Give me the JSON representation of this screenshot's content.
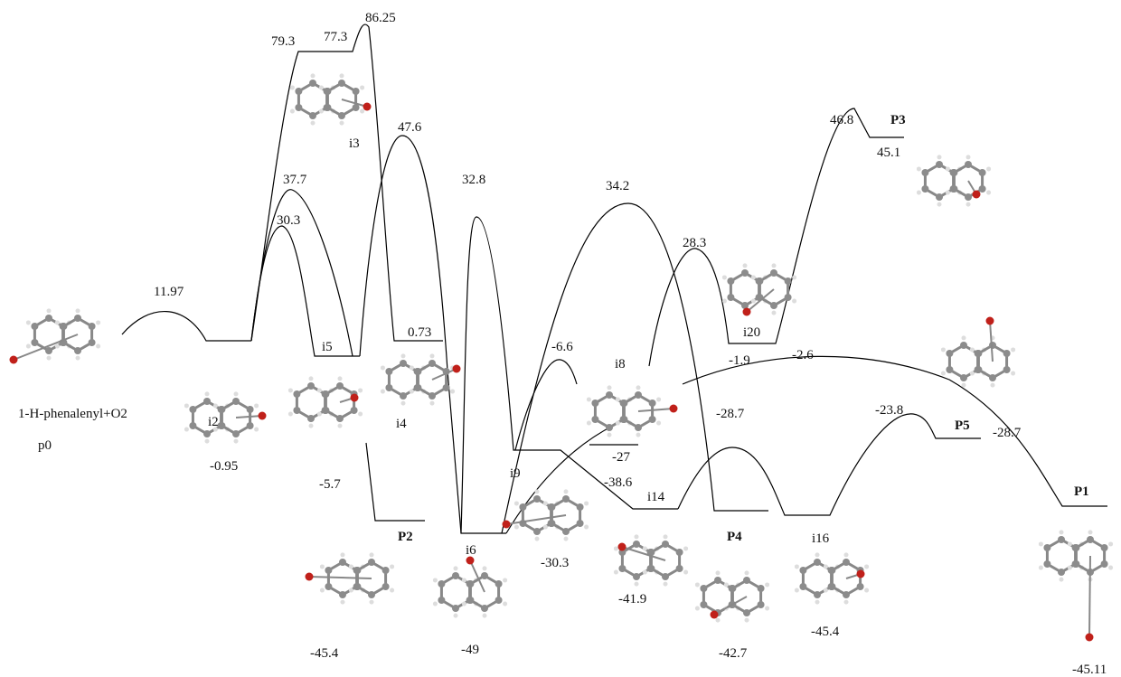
{
  "species": [
    "1-H-phenalenyl+O2",
    "p0",
    "i2",
    "i3",
    "i5",
    "i4",
    "P2",
    "i6",
    "i9",
    "i8",
    "i14",
    "P4",
    "i20",
    "i16",
    "P3",
    "P5",
    "P1"
  ],
  "energies": [
    "11.97",
    "-0.95",
    "79.3",
    "77.3",
    "86.25",
    "37.7",
    "30.3",
    "-5.7",
    "47.6",
    "0.73",
    "32.8",
    "-45.4",
    "-49",
    "-30.3",
    "-6.6",
    "34.2",
    "-27",
    "-38.6",
    "-41.9",
    "28.3",
    "-42.7",
    "-1.9",
    "-2.6",
    "-28.7",
    "-45.4",
    "46.8",
    "45.1",
    "-23.8",
    "-28.7",
    "-45.11"
  ]
}
